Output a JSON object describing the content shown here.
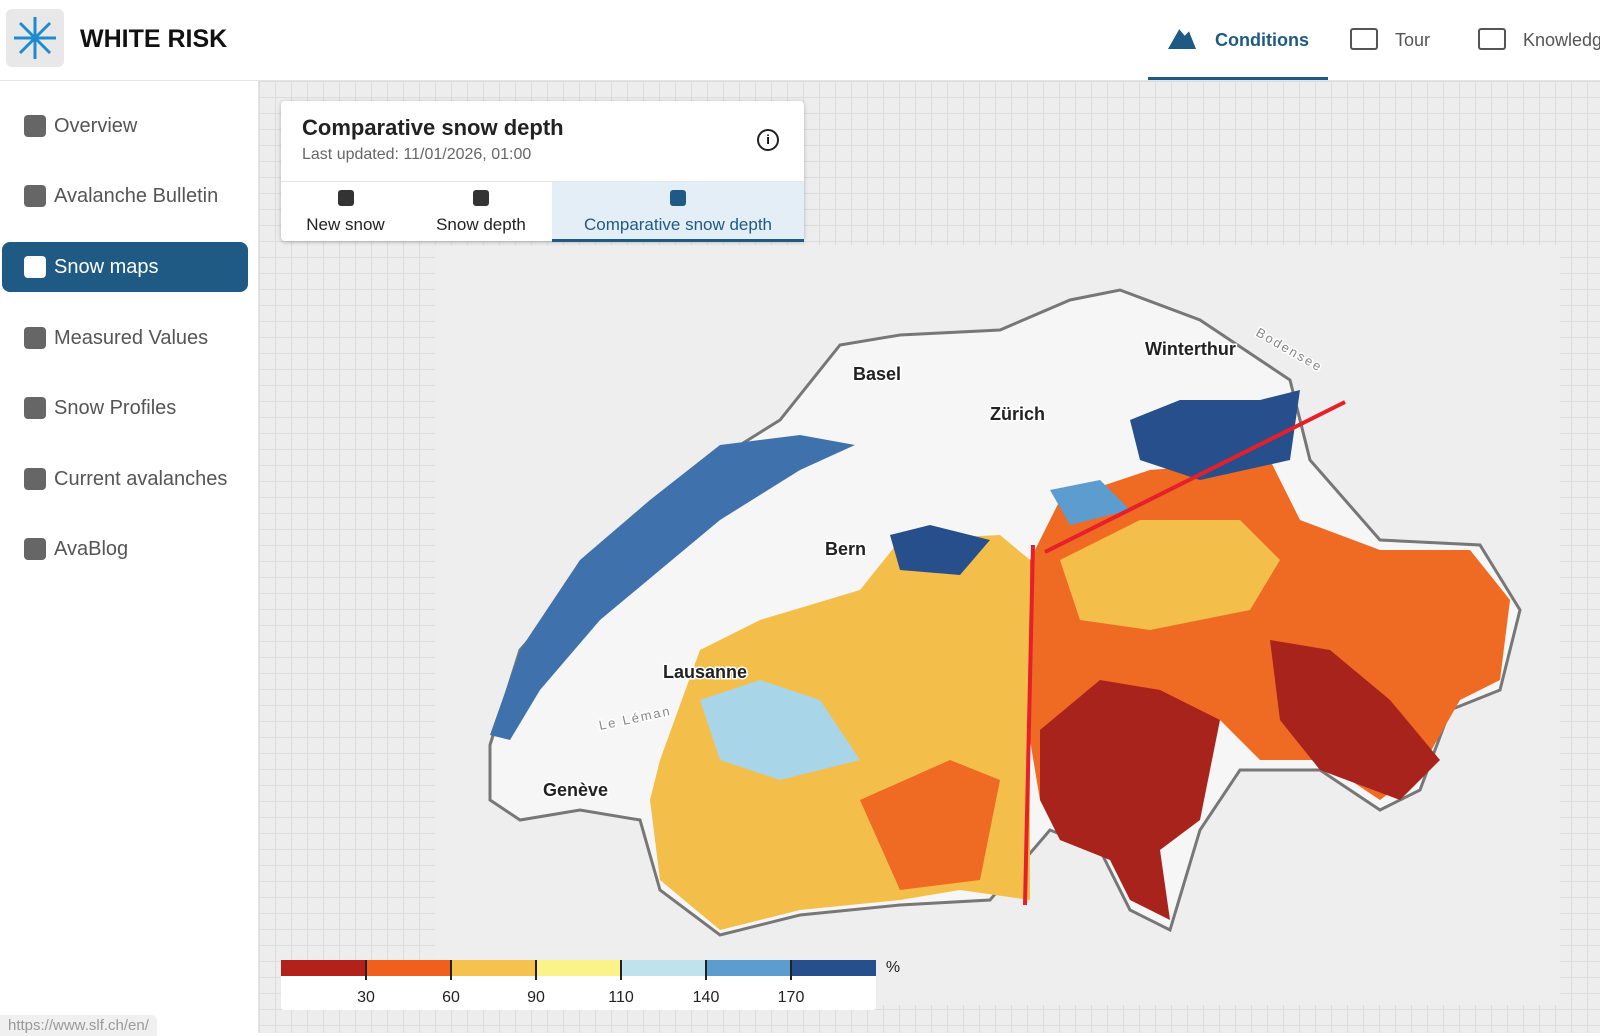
{
  "header": {
    "app_name": "WHITE RISK",
    "nav": [
      "Conditions",
      "Tour",
      "Knowledge"
    ]
  },
  "sidebar": {
    "items": [
      "Overview",
      "Avalanche Bulletin",
      "Snow maps",
      "Measured Values",
      "Snow Profiles",
      "Current avalanches",
      "AvaBlog"
    ],
    "active": 2
  },
  "panel": {
    "title": "Comparative snow depth",
    "updated": "Last updated: 11/01/2026, 01:00",
    "tabs": [
      "New snow",
      "Snow depth",
      "Comparative snow depth"
    ],
    "active_tab": 2
  },
  "map": {
    "labels": [
      "Basel",
      "Winterthur",
      "Zürich",
      "Bern",
      "Lausanne",
      "Genève",
      "Bodensee",
      "Le Léman"
    ]
  },
  "legend": {
    "colors": [
      "#b3211b",
      "#f0601c",
      "#f6c24e",
      "#fbf28a",
      "#bfe2ee",
      "#5d9ccf",
      "#274f8c"
    ],
    "ticks": [
      30,
      60,
      90,
      110,
      140,
      170
    ],
    "unit": "%"
  },
  "status_url": "https://www.slf.ch/en/"
}
